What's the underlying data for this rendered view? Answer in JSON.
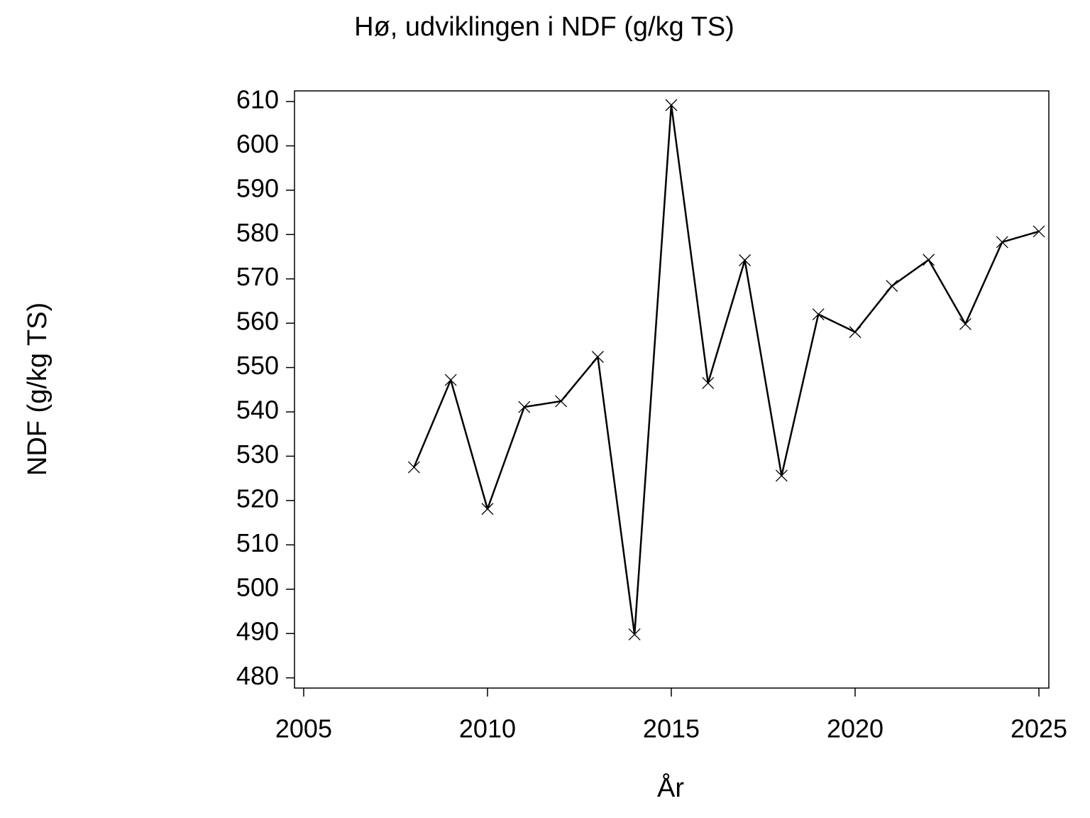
{
  "chart_data": {
    "type": "line",
    "title": "Hø, udviklingen i NDF (g/kg TS)",
    "xlabel": "År",
    "ylabel": "NDF (g/kg TS)",
    "x": [
      2008,
      2009,
      2010,
      2011,
      2012,
      2013,
      2014,
      2015,
      2016,
      2017,
      2018,
      2019,
      2020,
      2021,
      2022,
      2023,
      2024,
      2025
    ],
    "series": [
      {
        "name": "NDF",
        "color": "#000000",
        "values": [
          527.5,
          547.2,
          518.1,
          541.1,
          542.4,
          552.4,
          489.8,
          609.2,
          546.5,
          574.2,
          525.6,
          562,
          558,
          568.4,
          574.3,
          559.8,
          578.3,
          580.7
        ]
      }
    ],
    "xlim": [
      2004.75,
      2025.27
    ],
    "xticks": [
      2005,
      2010,
      2015,
      2020,
      2025
    ],
    "ylim": [
      477.7,
      612.4
    ],
    "yticks": [
      480,
      490,
      500,
      510,
      520,
      530,
      540,
      550,
      560,
      570,
      580,
      590,
      600,
      610
    ],
    "grid": false
  }
}
